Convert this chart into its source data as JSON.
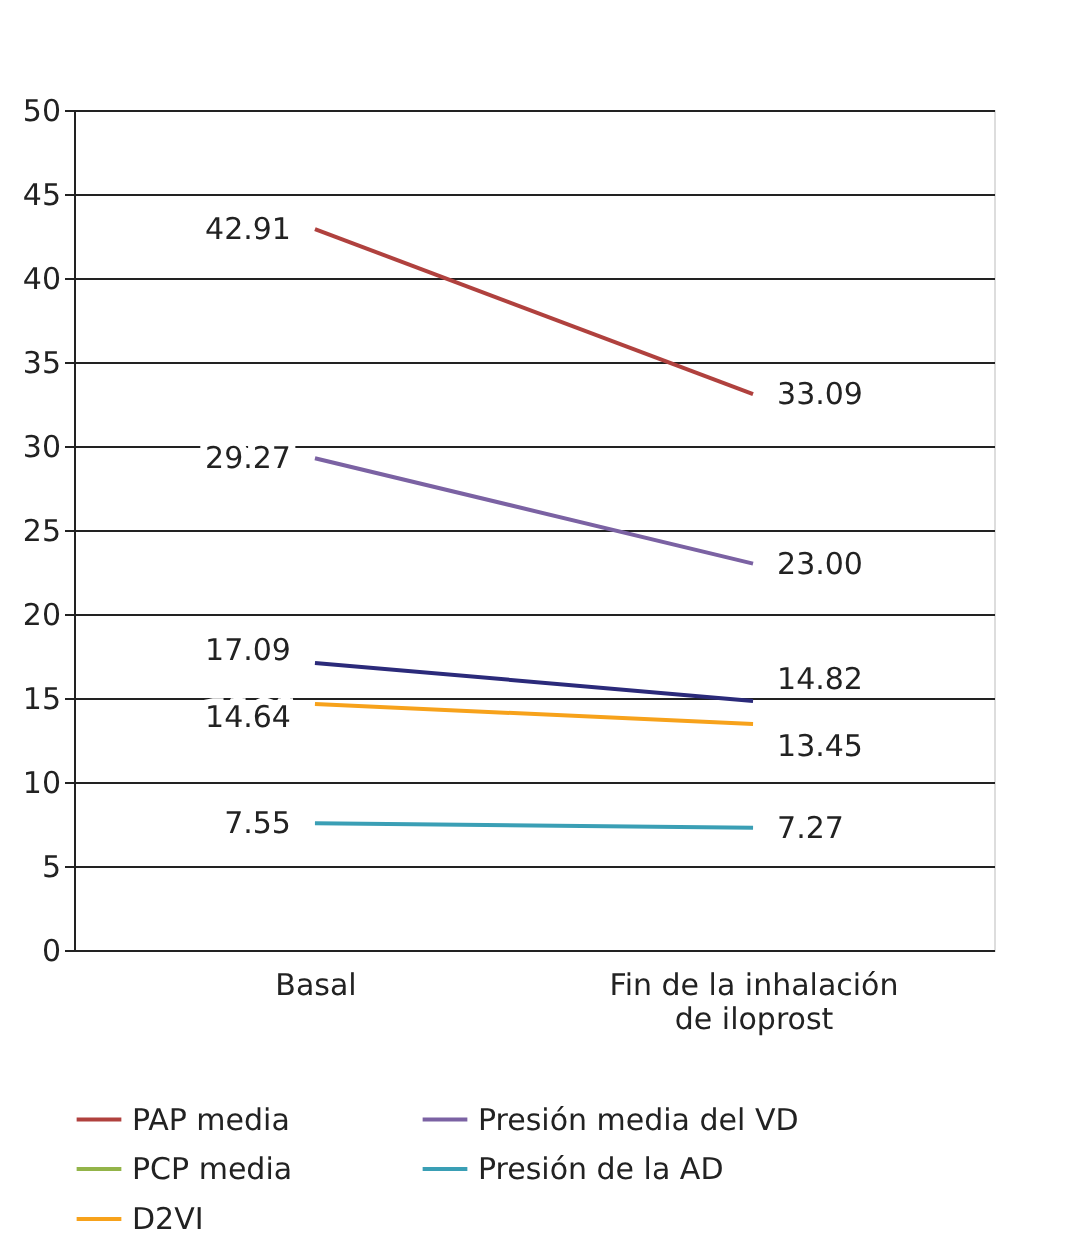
{
  "chart_data": {
    "type": "line",
    "categories": [
      "Basal",
      "Fin de la inhalación de iloprost"
    ],
    "series": [
      {
        "name": "PAP media",
        "color": "#b0413e",
        "values": [
          42.91,
          33.09
        ]
      },
      {
        "name": "Presión media del VD",
        "color": "#7b62a3",
        "values": [
          29.27,
          23.0
        ],
        "value_labels": [
          "29.27",
          "23.00"
        ]
      },
      {
        "name": "PCP media",
        "color": "#93b449",
        "values": [
          null,
          null
        ]
      },
      {
        "name": "Presión de la AD",
        "color": "#3a9fb5",
        "values": [
          7.55,
          7.27
        ]
      },
      {
        "name": "D2VI",
        "color": "#f7a21b",
        "values": [
          14.64,
          13.45
        ]
      },
      {
        "color": "#2b2a7a",
        "values": [
          17.09,
          14.82
        ]
      }
    ],
    "ylim": [
      0,
      50
    ],
    "yticks": [
      0,
      5,
      10,
      15,
      20,
      25,
      30,
      35,
      40,
      45,
      50
    ],
    "grid": "y",
    "legend": "bottom",
    "marker": "none",
    "line_style": "solid",
    "data_labels": true
  }
}
